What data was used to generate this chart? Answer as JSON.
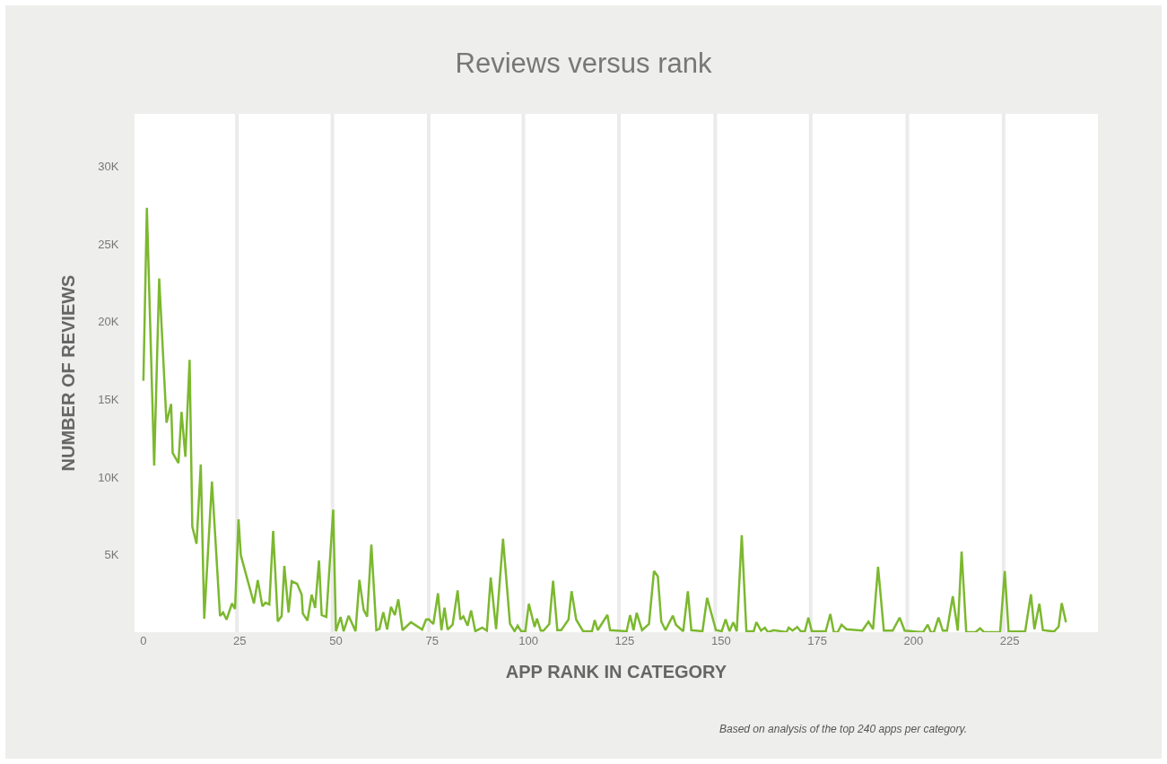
{
  "chart_data": {
    "type": "line",
    "title": "Reviews versus rank",
    "xlabel": "APP RANK IN CATEGORY",
    "ylabel": "NUMBER OF REVIEWS",
    "annotations": [
      "Based on analysis of the top 240 apps per category."
    ],
    "x": [
      0,
      0.9,
      2.8,
      4.1,
      6.0,
      7.2,
      7.6,
      9.1,
      9.9,
      10.9,
      12.0,
      12.7,
      13.8,
      14.9,
      15.8,
      17.8,
      19.9,
      20.7,
      21.6,
      23.0,
      23.8,
      24.7,
      25.3,
      28.7,
      29.7,
      30.9,
      31.7,
      32.7,
      33.7,
      34.9,
      35.9,
      36.6,
      37.7,
      38.5,
      39.9,
      41.1,
      41.4,
      42.6,
      43.7,
      44.6,
      45.6,
      46.3,
      47.5,
      49.3,
      50.0,
      51.2,
      52.0,
      53.3,
      55.1,
      56.1,
      57.2,
      58.1,
      59.2,
      60.5,
      61.3,
      62.3,
      63.3,
      64.3,
      65.3,
      66.2,
      67.3,
      69.5,
      72.4,
      73.4,
      74.1,
      75.3,
      76.5,
      77.4,
      78.2,
      79.0,
      80.3,
      81.6,
      82.3,
      83.1,
      84.2,
      85.1,
      86.2,
      88.0,
      89.2,
      90.2,
      91.6,
      93.4,
      95.2,
      96.4,
      97.2,
      98.1,
      99.2,
      100.1,
      101.6,
      102.2,
      103.2,
      103.9,
      105.4,
      106.4,
      107.5,
      108.5,
      110.4,
      111.2,
      112.4,
      114.2,
      116.5,
      117.2,
      118.0,
      120.5,
      121.2,
      125.5,
      126.4,
      127.3,
      128.1,
      129.5,
      131.3,
      132.6,
      133.6,
      134.5,
      135.6,
      137.5,
      138.3,
      140.2,
      141.4,
      142.3,
      145.2,
      146.4,
      148.7,
      150.2,
      151.2,
      152.2,
      153.2,
      154.1,
      155.4,
      156.6,
      158.5,
      159.2,
      160.4,
      161.4,
      162.2,
      163.7,
      167.0,
      167.6,
      168.6,
      169.8,
      170.7,
      171.8,
      172.7,
      173.6,
      177.2,
      178.4,
      179.3,
      180.3,
      181.3,
      182.6,
      186.7,
      188.3,
      189.5,
      190.8,
      192.3,
      194.6,
      196.4,
      197.7,
      202.5,
      203.7,
      204.5,
      205.3,
      206.5,
      207.6,
      208.7,
      210.2,
      211.5,
      212.5,
      213.7,
      216.1,
      217.3,
      218.3,
      222.5,
      223.7,
      224.7,
      229.0,
      230.5,
      231.4,
      232.7,
      233.6,
      236.5,
      237.7,
      238.5,
      239.6
    ],
    "series": [
      {
        "color": "#7cb82f",
        "values": [
          16200,
          27350,
          10730,
          22800,
          13500,
          14700,
          11550,
          10900,
          14200,
          11300,
          17550,
          6800,
          5700,
          10800,
          870,
          9700,
          1040,
          1270,
          810,
          1850,
          1500,
          7270,
          4960,
          1850,
          3350,
          1670,
          1900,
          1790,
          6520,
          690,
          1040,
          4270,
          1270,
          3290,
          3120,
          2420,
          1210,
          750,
          2420,
          1560,
          4620,
          1100,
          980,
          7900,
          60,
          980,
          60,
          1060,
          60,
          3370,
          1440,
          1000,
          5640,
          130,
          210,
          1290,
          170,
          1630,
          1100,
          2120,
          130,
          640,
          170,
          810,
          830,
          520,
          2500,
          130,
          1580,
          170,
          480,
          2690,
          810,
          1020,
          420,
          1400,
          60,
          290,
          100,
          3520,
          190,
          6020,
          540,
          60,
          420,
          60,
          60,
          1830,
          330,
          870,
          100,
          100,
          520,
          3310,
          130,
          130,
          810,
          2640,
          810,
          60,
          60,
          770,
          130,
          1110,
          130,
          60,
          1100,
          130,
          1250,
          130,
          520,
          3940,
          3600,
          680,
          130,
          1060,
          480,
          60,
          2640,
          130,
          60,
          2210,
          130,
          60,
          830,
          60,
          640,
          60,
          6250,
          60,
          60,
          640,
          100,
          290,
          0,
          130,
          0,
          290,
          100,
          330,
          60,
          60,
          940,
          60,
          60,
          1170,
          0,
          0,
          480,
          190,
          100,
          680,
          190,
          4210,
          100,
          100,
          940,
          100,
          0,
          480,
          0,
          0,
          940,
          100,
          100,
          2310,
          100,
          5200,
          0,
          0,
          250,
          0,
          0,
          3940,
          40,
          40,
          2440,
          190,
          1830,
          130,
          40,
          360,
          1870,
          640
        ]
      }
    ],
    "xlim": [
      -2.3,
      247.9
    ],
    "xticks": [
      0,
      {
        "value": 24.3,
        "label": null
      },
      25,
      {
        "value": 49.1,
        "label": null
      },
      50,
      {
        "value": 74.1,
        "label": null
      },
      75,
      {
        "value": 98.7,
        "label": null
      },
      100,
      {
        "value": 123.5,
        "label": null
      },
      125,
      {
        "value": 148.5,
        "label": null
      },
      150,
      {
        "value": 173.3,
        "label": null
      },
      175,
      {
        "value": 198.4,
        "label": null
      },
      200,
      {
        "value": 223.4,
        "label": null
      },
      225
    ],
    "ylim": [
      0,
      33400
    ],
    "yticks": [
      {
        "value": 5000,
        "label": "5K"
      },
      {
        "value": 10000,
        "label": "10K"
      },
      {
        "value": 15000,
        "label": "15K"
      },
      {
        "value": 20000,
        "label": "20K"
      },
      {
        "value": 25000,
        "label": "25K"
      },
      {
        "value": 30000,
        "label": "30K"
      }
    ],
    "grid": "x",
    "marker": "none",
    "line_style": "solid"
  }
}
